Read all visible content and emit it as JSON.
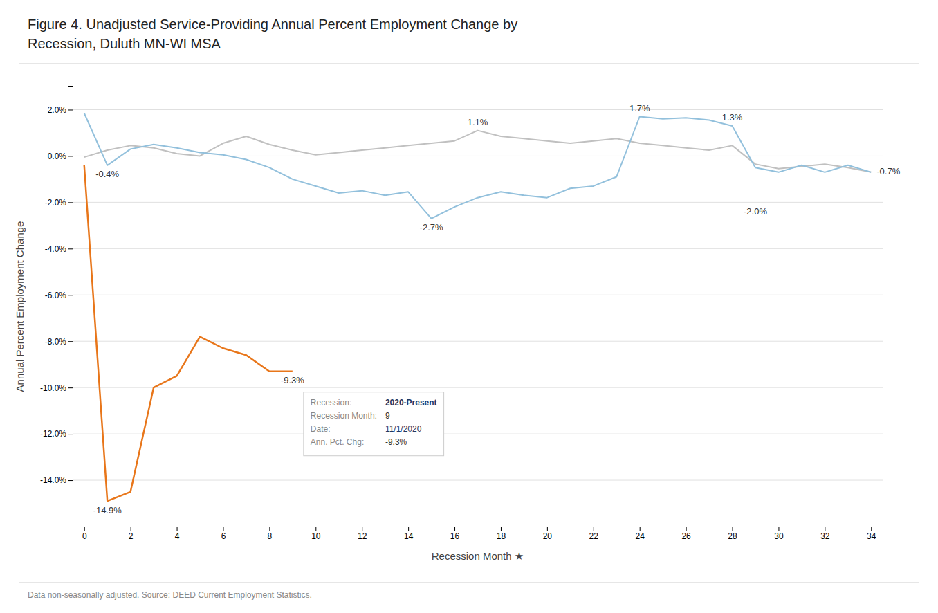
{
  "chart_data": {
    "type": "line",
    "title": "Figure 4. Unadjusted Service-Providing Annual Percent Employment Change by",
    "subtitle": "Recession, Duluth MN-WI MSA",
    "xlabel": "Recession Month ★",
    "ylabel": "Annual Percent Employment Change",
    "footnote": "Data non-seasonally adjusted. Source: DEED Current Employment Statistics.",
    "grid": "y",
    "xlim": [
      -0.5,
      34.5
    ],
    "ylim": [
      -16,
      3
    ],
    "xticks": [
      0,
      2,
      4,
      6,
      8,
      10,
      12,
      14,
      16,
      18,
      20,
      22,
      24,
      26,
      28,
      30,
      32,
      34
    ],
    "yticks": [
      {
        "value": -14,
        "label": "-14.0%"
      },
      {
        "value": -12,
        "label": "-12.0%"
      },
      {
        "value": -10,
        "label": "-10.0%"
      },
      {
        "value": -8,
        "label": "-8.0%"
      },
      {
        "value": -6,
        "label": "-6.0%"
      },
      {
        "value": -4,
        "label": "-4.0%"
      },
      {
        "value": -2,
        "label": "-2.0%"
      },
      {
        "value": 0,
        "label": "0.0%"
      },
      {
        "value": 2,
        "label": "2.0%"
      }
    ],
    "x": [
      0,
      1,
      2,
      3,
      4,
      5,
      6,
      7,
      8,
      9,
      10,
      11,
      12,
      13,
      14,
      15,
      16,
      17,
      18,
      19,
      20,
      21,
      22,
      23,
      24,
      25,
      26,
      27,
      28,
      29,
      30,
      31,
      32,
      33,
      34
    ],
    "series": [
      {
        "color": "#C0C0C0",
        "values": [
          -0.05,
          0.25,
          0.45,
          0.35,
          0.1,
          0.0,
          0.55,
          0.85,
          0.5,
          0.25,
          0.05,
          0.15,
          0.25,
          0.35,
          0.45,
          0.55,
          0.65,
          1.1,
          0.85,
          0.75,
          0.65,
          0.55,
          0.65,
          0.75,
          0.55,
          0.45,
          0.35,
          0.25,
          0.45,
          -0.35,
          -0.55,
          -0.45,
          -0.35,
          -0.5,
          -0.7
        ]
      },
      {
        "color": "#92C0DC",
        "values": [
          1.85,
          -0.4,
          0.3,
          0.5,
          0.35,
          0.15,
          0.05,
          -0.15,
          -0.5,
          -1.0,
          -1.3,
          -1.6,
          -1.5,
          -1.7,
          -1.55,
          -2.7,
          -2.2,
          -1.8,
          -1.55,
          -1.7,
          -1.8,
          -1.4,
          -1.3,
          -0.9,
          1.7,
          1.6,
          1.65,
          1.55,
          1.3,
          -0.5,
          -0.7,
          -0.4,
          -0.7,
          -0.4,
          -0.7
        ]
      },
      {
        "color": "#E8761A",
        "values": [
          -0.4,
          -14.9,
          -14.5,
          -10.0,
          -9.5,
          -7.8,
          -8.3,
          -8.6,
          -9.3,
          -9.3,
          null,
          null,
          null,
          null,
          null,
          null,
          null,
          null,
          null,
          null,
          null,
          null,
          null,
          null,
          null,
          null,
          null,
          null,
          null,
          null,
          null,
          null,
          null,
          null,
          null
        ]
      }
    ],
    "annotations": [
      {
        "x": 1,
        "y": -0.4,
        "text": "-0.4%"
      },
      {
        "x": 1,
        "y": -14.9,
        "text": "-14.9%"
      },
      {
        "x": 9,
        "y": -9.3,
        "text": "-9.3%"
      },
      {
        "x": 15,
        "y": -2.7,
        "text": "-2.7%"
      },
      {
        "x": 17,
        "y": 1.1,
        "text": "1.1%"
      },
      {
        "x": 24,
        "y": 1.7,
        "text": "1.7%"
      },
      {
        "x": 28,
        "y": 1.3,
        "text": "1.3%"
      },
      {
        "x": 29,
        "y": -2.0,
        "text": "-2.0%"
      },
      {
        "x": 34,
        "y": -0.7,
        "text": "-0.7%"
      }
    ],
    "tooltip": {
      "x": 9,
      "y": -9.3,
      "rows": [
        {
          "label": "Recession:",
          "value": "2020-Present"
        },
        {
          "label": "Recession Month:",
          "value": "9"
        },
        {
          "label": "Date:",
          "value": "11/1/2020"
        },
        {
          "label": "Ann. Pct. Chg:",
          "value": "-9.3%"
        }
      ]
    }
  }
}
